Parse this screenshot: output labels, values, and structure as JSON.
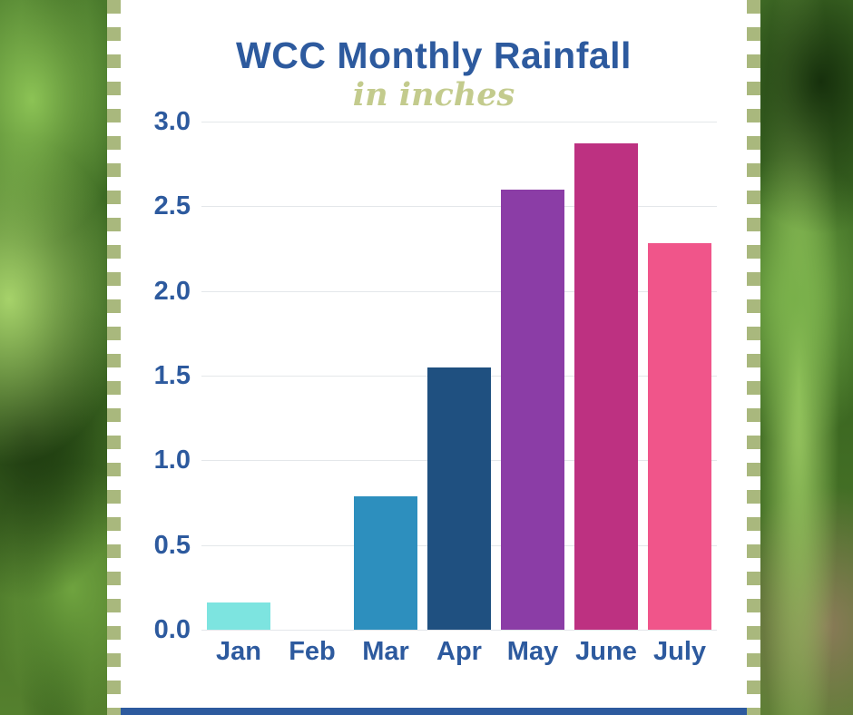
{
  "chart_data": {
    "type": "bar",
    "title": "WCC Monthly Rainfall",
    "subtitle": "in inches",
    "categories": [
      "Jan",
      "Feb",
      "Mar",
      "Apr",
      "May",
      "June",
      "July"
    ],
    "values": [
      0.16,
      0.0,
      0.79,
      1.55,
      2.6,
      2.87,
      2.28
    ],
    "bar_colors": [
      "#7de4e0",
      "#7de4e0",
      "#2d8fbe",
      "#1f5080",
      "#8b3da6",
      "#bd3181",
      "#f0558a"
    ],
    "ylim": [
      0,
      3.0
    ],
    "yticks": [
      0.0,
      0.5,
      1.0,
      1.5,
      2.0,
      2.5,
      3.0
    ],
    "ytick_labels": [
      "0.0",
      "0.5",
      "1.0",
      "1.5",
      "2.0",
      "2.5",
      "3.0"
    ],
    "grid": true,
    "legend": false,
    "xlabel": "",
    "ylabel": ""
  },
  "colors": {
    "title": "#2d5a9e",
    "subtitle": "#c3cb8d",
    "axis_label": "#2d5a9e",
    "gridline": "#e4e7ea",
    "panel": "#ffffff",
    "border_check": "#a9b87d",
    "footer_bar": "#2d5a9e"
  }
}
